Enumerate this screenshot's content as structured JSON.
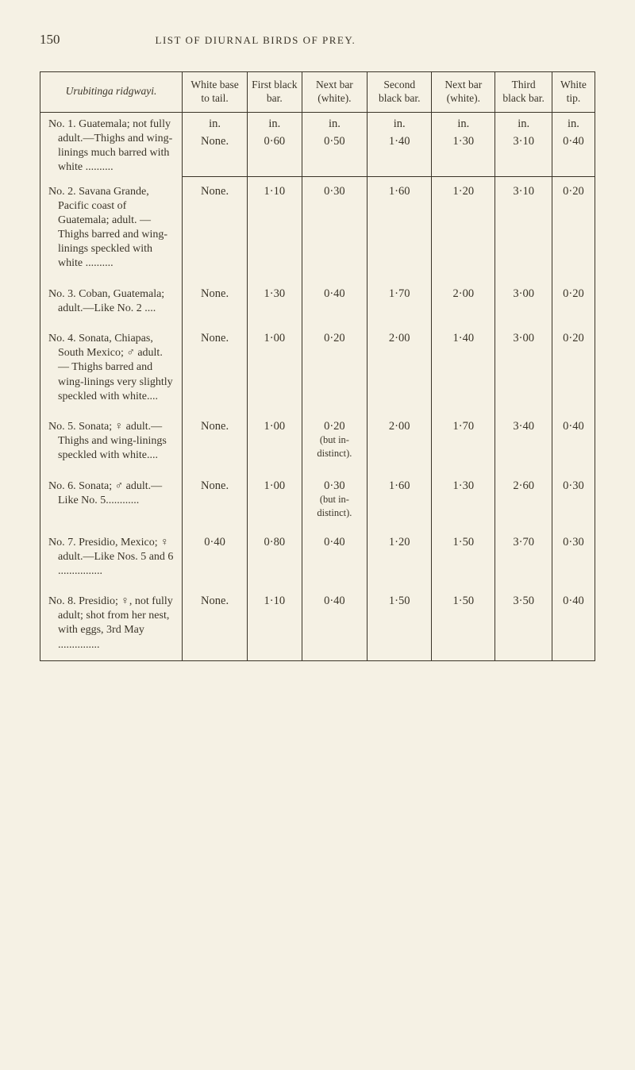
{
  "page_number": "150",
  "running_head": "LIST OF DIURNAL BIRDS OF PREY.",
  "species_label": "Urubitinga ridgwayi.",
  "columns": [
    "White base to tail.",
    "First black bar.",
    "Next bar (white).",
    "Second black bar.",
    "Next bar (white).",
    "Third black bar.",
    "White tip."
  ],
  "unit": "in.",
  "rows": [
    {
      "desc": "No. 1. Guatemala; not fully adult.—Thighs and wing-linings much barred with white ..........",
      "vals": [
        "None.",
        "0·60",
        "0·50",
        "1·40",
        "1·30",
        "3·10",
        "0·40"
      ]
    },
    {
      "desc": "No. 2. Savana Grande, Pacific coast of Guatemala; adult. — Thighs barred and wing-linings speckled with white ..........",
      "vals": [
        "None.",
        "1·10",
        "0·30",
        "1·60",
        "1·20",
        "3·10",
        "0·20"
      ]
    },
    {
      "desc": "No. 3. Coban, Guatemala; adult.—Like No. 2 ....",
      "vals": [
        "None.",
        "1·30",
        "0·40",
        "1·70",
        "2·00",
        "3·00",
        "0·20"
      ]
    },
    {
      "desc": "No. 4. Sonata, Chiapas, South Mexico; ♂ adult. — Thighs barred and wing-linings very slightly speckled with white....",
      "vals": [
        "None.",
        "1·00",
        "0·20",
        "2·00",
        "1·40",
        "3·00",
        "0·20"
      ]
    },
    {
      "desc": "No. 5. Sonata; ♀ adult.— Thighs and wing-linings speckled with white....",
      "vals": [
        "None.",
        "1·00",
        "0·20",
        "2·00",
        "1·70",
        "3·40",
        "0·40"
      ],
      "note": "(but in-distinct)."
    },
    {
      "desc": "No. 6. Sonata; ♂ adult.— Like No. 5............",
      "vals": [
        "None.",
        "1·00",
        "0·30",
        "1·60",
        "1·30",
        "2·60",
        "0·30"
      ],
      "note": "(but in-distinct)."
    },
    {
      "desc": "No. 7. Presidio, Mexico; ♀ adult.—Like Nos. 5 and 6 ................",
      "vals": [
        "0·40",
        "0·80",
        "0·40",
        "1·20",
        "1·50",
        "3·70",
        "0·30"
      ]
    },
    {
      "desc": "No. 8. Presidio; ♀, not fully adult; shot from her nest, with eggs, 3rd May ...............",
      "vals": [
        "None.",
        "1·10",
        "0·40",
        "1·50",
        "1·50",
        "3·50",
        "0·40"
      ]
    }
  ]
}
